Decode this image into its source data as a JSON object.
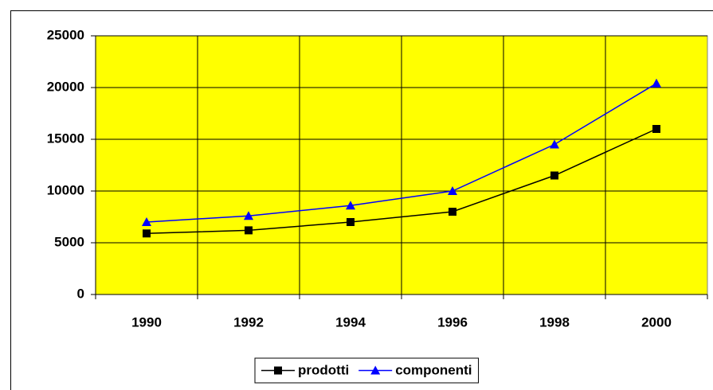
{
  "chart_data": {
    "type": "line",
    "categories": [
      "1990",
      "1992",
      "1994",
      "1996",
      "1998",
      "2000"
    ],
    "series": [
      {
        "name": "prodotti",
        "color": "#000000",
        "marker": "square",
        "values": [
          5900,
          6200,
          7000,
          8000,
          11500,
          16000
        ]
      },
      {
        "name": "componenti",
        "color": "#0000ff",
        "marker": "triangle",
        "values": [
          7000,
          7600,
          8600,
          10000,
          14500,
          20400
        ]
      }
    ],
    "ylim": [
      0,
      25000
    ],
    "yticks": [
      0,
      5000,
      10000,
      15000,
      20000,
      25000
    ],
    "grid": true,
    "legend": "bottom",
    "plot_background": "#ffff00"
  }
}
